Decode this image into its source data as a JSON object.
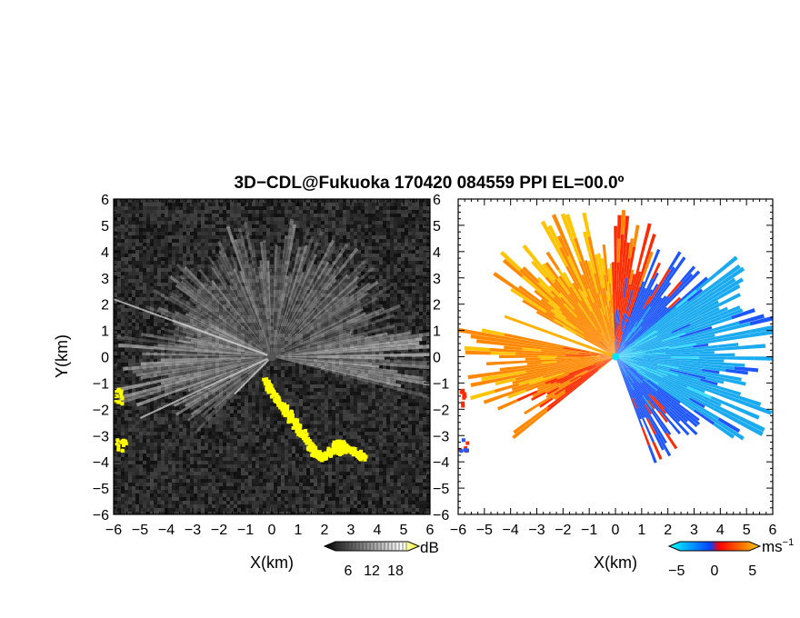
{
  "title": "3D−CDL@Fukuoka 170420 084559 PPI EL=00.0º",
  "chart_data": [
    {
      "type": "heatmap",
      "panel": "reflectivity",
      "xlabel": "X(km)",
      "ylabel": "Y(km)",
      "xlim": [
        -6,
        6
      ],
      "ylim": [
        -6,
        6
      ],
      "x_ticks": [
        "−6",
        "−5",
        "−4",
        "−3",
        "−2",
        "−1",
        "0",
        "1",
        "2",
        "3",
        "4",
        "5",
        "6"
      ],
      "y_ticks": [
        "−6",
        "−5",
        "−4",
        "−3",
        "−2",
        "−1",
        "0",
        "1",
        "2",
        "3",
        "4",
        "5",
        "6"
      ],
      "colorbar": {
        "unit": "dB",
        "tick_labels": [
          "6",
          "12",
          "18"
        ],
        "range": [
          0,
          24
        ],
        "colors": [
          "#000000",
          "#ffffff",
          "#ffff00"
        ]
      },
      "highlight_color": "#ffff00",
      "background_color": "#262626",
      "grid": false
    },
    {
      "type": "heatmap",
      "panel": "doppler-velocity",
      "xlabel": "X(km)",
      "xlim": [
        -6,
        6
      ],
      "ylim": [
        -6,
        6
      ],
      "x_ticks": [
        "−6",
        "−5",
        "−4",
        "−3",
        "−2",
        "−1",
        "0",
        "1",
        "2",
        "3",
        "4",
        "5",
        "6"
      ],
      "y_ticks": [
        "−6",
        "−5",
        "−4",
        "−3",
        "−2",
        "−1",
        "0",
        "1",
        "2",
        "3",
        "4",
        "5",
        "6"
      ],
      "colorbar": {
        "unit": "ms",
        "unit_exponent": "−1",
        "tick_labels": [
          "−5",
          "0",
          "5"
        ],
        "range": [
          -6,
          6
        ],
        "colors": [
          "#00ffff",
          "#0044ff",
          "#ff0000",
          "#ffcc00"
        ]
      },
      "background_color": "#ffffff",
      "grid": false
    }
  ]
}
